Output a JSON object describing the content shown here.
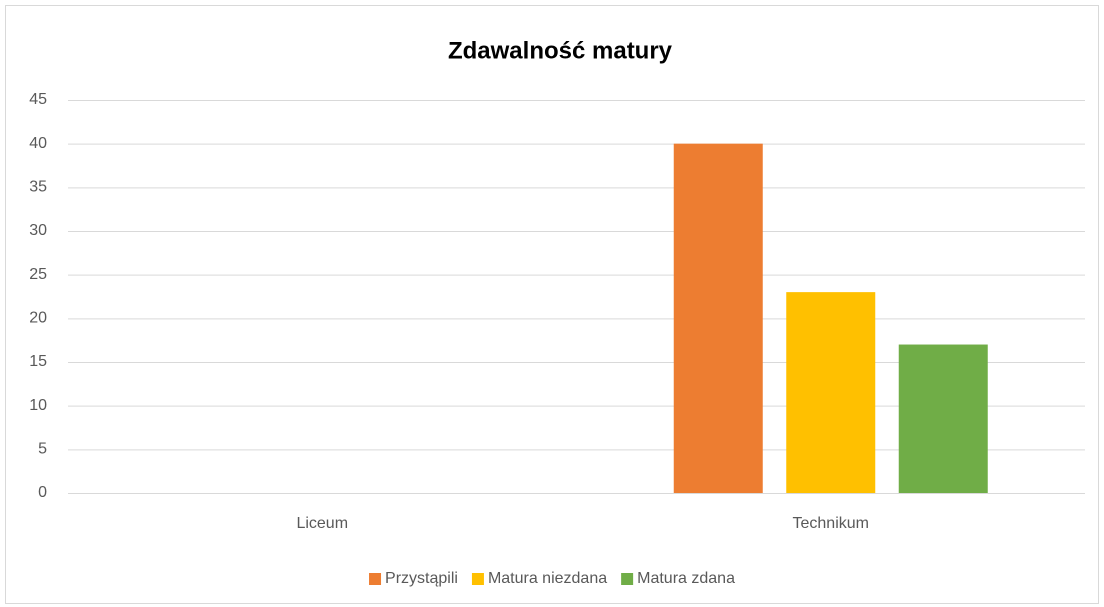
{
  "chart_data": {
    "type": "bar",
    "title": "Zdawalność matury",
    "categories": [
      "Liceum",
      "Technikum"
    ],
    "series": [
      {
        "name": "Przystąpili",
        "color": "#ed7d31",
        "values": [
          0,
          40
        ]
      },
      {
        "name": "Matura niezdana",
        "color": "#ffc000",
        "values": [
          0,
          23
        ]
      },
      {
        "name": "Matura zdana",
        "color": "#70ad47",
        "values": [
          0,
          17
        ]
      }
    ],
    "ylim": [
      0,
      45
    ],
    "yticks": [
      0,
      5,
      10,
      15,
      20,
      25,
      30,
      35,
      40,
      45
    ],
    "grid": true,
    "legend": "bottom"
  }
}
